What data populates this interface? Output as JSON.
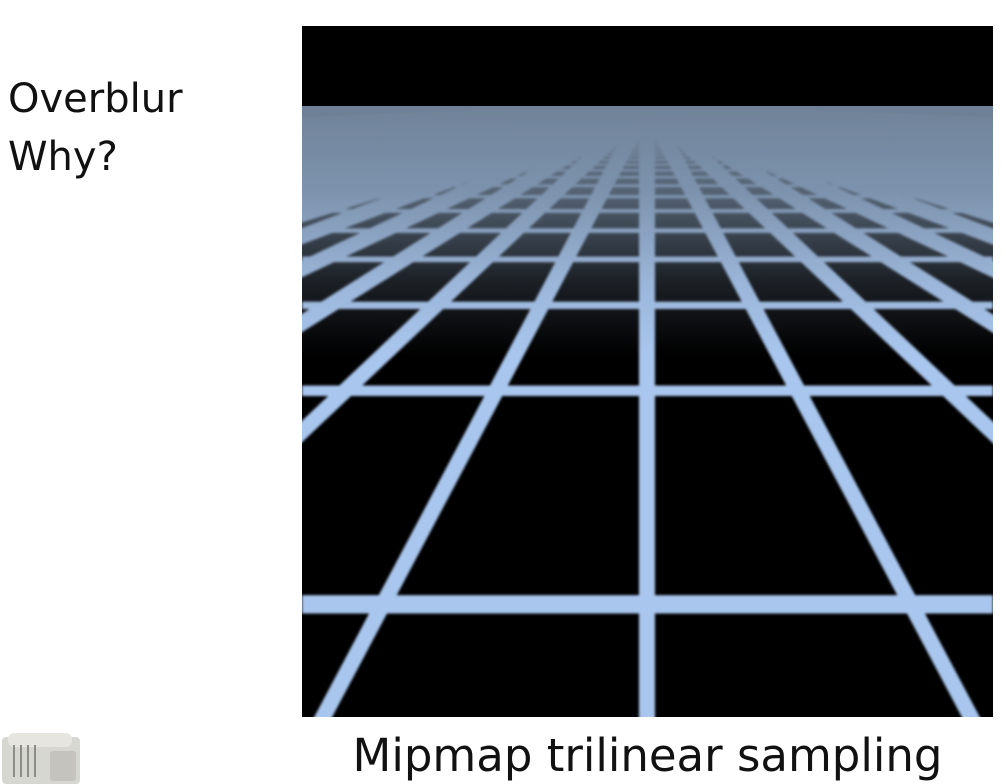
{
  "slide": {
    "lines": [
      "Overblur",
      "Why?"
    ]
  },
  "figure": {
    "caption": "Mipmap trilinear sampling",
    "sky_color": "#000000",
    "horizon_color": "#6f8298",
    "grid_line_color": "#a9c6ee",
    "tile_color": "#000000"
  },
  "icons": {
    "corner": "presenter-video-thumbnail"
  }
}
